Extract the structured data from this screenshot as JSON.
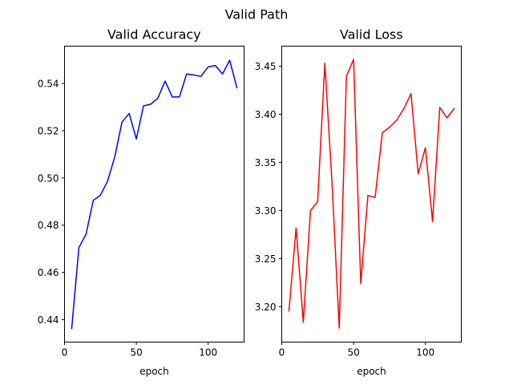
{
  "figure": {
    "suptitle": "Valid Path"
  },
  "chart_data": [
    {
      "type": "line",
      "title": "Valid Accuracy",
      "xlabel": "epoch",
      "ylabel": "",
      "xlim": [
        0,
        125
      ],
      "ylim": [
        0.4305,
        0.5558
      ],
      "xticks": [
        0,
        50,
        100
      ],
      "xtick_labels": [
        "0",
        "50",
        "100"
      ],
      "yticks": [
        0.44,
        0.46,
        0.48,
        0.5,
        0.52,
        0.54
      ],
      "ytick_labels": [
        "0.44",
        "0.46",
        "0.48",
        "0.50",
        "0.52",
        "0.54"
      ],
      "series": [
        {
          "name": "accuracy",
          "color": "#0000ff",
          "x": [
            5,
            10,
            15,
            20,
            25,
            30,
            35,
            40,
            45,
            50,
            55,
            60,
            65,
            70,
            75,
            80,
            85,
            90,
            95,
            100,
            105,
            110,
            115,
            120
          ],
          "y": [
            0.4363,
            0.4705,
            0.4762,
            0.4905,
            0.4927,
            0.4987,
            0.509,
            0.5236,
            0.5273,
            0.5165,
            0.5305,
            0.5312,
            0.5338,
            0.541,
            0.5343,
            0.5343,
            0.544,
            0.5436,
            0.543,
            0.547,
            0.5476,
            0.544,
            0.5498,
            0.5382
          ]
        }
      ]
    },
    {
      "type": "line",
      "title": "Valid Loss",
      "xlabel": "epoch",
      "ylabel": "",
      "xlim": [
        0,
        125
      ],
      "ylim": [
        3.1632,
        3.4708
      ],
      "xticks": [
        0,
        50,
        100
      ],
      "xtick_labels": [
        "0",
        "50",
        "100"
      ],
      "yticks": [
        3.2,
        3.25,
        3.3,
        3.35,
        3.4,
        3.45
      ],
      "ytick_labels": [
        "3.20",
        "3.25",
        "3.30",
        "3.35",
        "3.40",
        "3.45"
      ],
      "series": [
        {
          "name": "loss",
          "color": "#ff0000",
          "x": [
            5,
            10,
            15,
            20,
            25,
            30,
            35,
            40,
            45,
            50,
            55,
            60,
            65,
            70,
            75,
            80,
            85,
            90,
            95,
            100,
            105,
            110,
            115,
            120
          ],
          "y": [
            3.1955,
            3.2818,
            3.1839,
            3.2998,
            3.3092,
            3.4531,
            3.3286,
            3.1777,
            3.4394,
            3.457,
            3.224,
            3.3156,
            3.3135,
            3.3806,
            3.3865,
            3.3938,
            3.4058,
            3.4214,
            3.3381,
            3.3652,
            3.2884,
            3.4071,
            3.3963,
            3.4058
          ]
        }
      ]
    }
  ]
}
